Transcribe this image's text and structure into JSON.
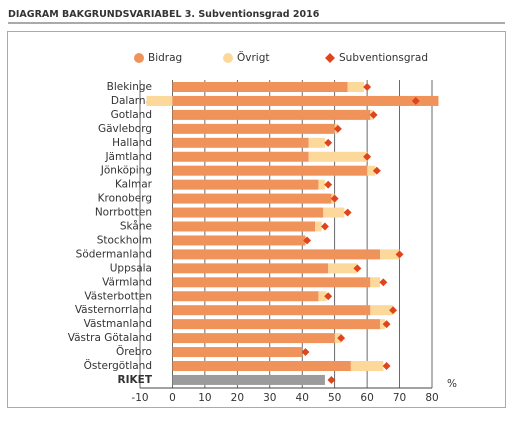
{
  "chart_data": {
    "type": "bar",
    "orientation": "horizontal",
    "title_label": "DIAGRAM BAKGRUNDSVARIABEL 3.",
    "title": "Subventionsgrad 2016",
    "xlabel": "%",
    "categories": [
      "Blekinge",
      "Dalarna",
      "Gotland",
      "Gävleborg",
      "Halland",
      "Jämtland",
      "Jönköping",
      "Kalmar",
      "Kronoberg",
      "Norrbotten",
      "Skåne",
      "Stockholm",
      "Södermanland",
      "Uppsala",
      "Värmland",
      "Västerbotten",
      "Västernorrland",
      "Västmanland",
      "Västra Götaland",
      "Örebro",
      "Östergötland",
      "RIKET"
    ],
    "series": [
      {
        "name": "Bidrag",
        "style": "bar",
        "color": "#f0935a",
        "bar_colors": [
          "#f0935a",
          "#f0935a",
          "#f0935a",
          "#f0935a",
          "#f0935a",
          "#f0935a",
          "#f0935a",
          "#f0935a",
          "#f0935a",
          "#f0935a",
          "#f0935a",
          "#f0935a",
          "#f0935a",
          "#f0935a",
          "#f0935a",
          "#f0935a",
          "#f0935a",
          "#f0935a",
          "#f0935a",
          "#f0935a",
          "#f0935a",
          "#9b9b9b"
        ],
        "values": [
          54,
          82,
          61,
          50,
          42,
          42,
          60,
          45,
          49,
          46.5,
          44,
          41,
          64,
          48,
          61,
          45,
          61,
          64,
          50,
          40,
          55,
          47
        ]
      },
      {
        "name": "Övrigt",
        "style": "bar",
        "color": "#fcd99a",
        "values": [
          5,
          -8,
          1,
          1,
          5,
          18,
          2.5,
          2,
          1,
          6.5,
          2,
          0,
          6,
          9,
          3,
          2.5,
          7,
          1.5,
          2,
          0,
          10,
          null
        ]
      },
      {
        "name": "Subventionsgrad",
        "style": "diamond",
        "color": "#e0441b",
        "values": [
          60,
          75,
          62,
          51,
          48,
          60,
          63,
          48,
          50,
          54,
          47,
          41.5,
          70,
          57,
          65,
          48,
          68,
          66,
          52,
          41,
          66,
          49
        ]
      }
    ],
    "xlim": [
      -10,
      80
    ],
    "xticks": [
      -10,
      0,
      10,
      20,
      30,
      40,
      50,
      60,
      70,
      80
    ],
    "grid": true
  }
}
